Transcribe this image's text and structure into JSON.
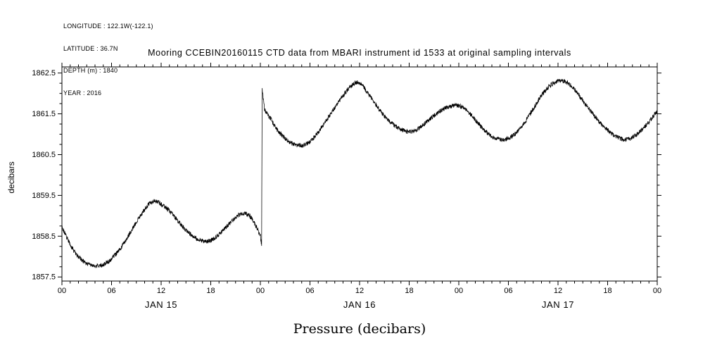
{
  "meta": {
    "longitude": "LONGITUDE : 122.1W(-122.1)",
    "latitude": "LATITUDE : 36.7N",
    "depth": "DEPTH (m) : 1840",
    "year": "YEAR : 2016"
  },
  "chart_data": {
    "type": "line",
    "title": "Mooring CCEBIN20160115 CTD data from MBARI instrument id 1533 at original sampling intervals",
    "ylabel": "decibars",
    "xlabel": "Pressure (decibars)",
    "background": "#ffffff",
    "line_color": "#000000",
    "frame_color": "#000000",
    "grid": false,
    "legend": false,
    "xlim_hours": [
      0,
      72
    ],
    "ylim": [
      1857.4,
      1862.65
    ],
    "y_ticks": [
      1857.5,
      1858.5,
      1859.5,
      1860.5,
      1861.5,
      1862.5
    ],
    "x_major_ticks_hours": [
      0,
      6,
      12,
      18,
      24,
      30,
      36,
      42,
      48,
      54,
      60,
      66,
      72
    ],
    "x_tick_labels": [
      "00",
      "06",
      "12",
      "18",
      "00",
      "06",
      "12",
      "18",
      "00",
      "06",
      "12",
      "18",
      "00"
    ],
    "x_minor_step_hours": 1,
    "y_minor_step": 0.25,
    "day_labels": [
      {
        "label": "JAN 15",
        "hour": 12
      },
      {
        "label": "JAN 16",
        "hour": 36
      },
      {
        "label": "JAN 17",
        "hour": 60
      }
    ],
    "noise_amplitude": 0.055,
    "series": [
      {
        "name": "pressure",
        "units": "decibars",
        "control_points": [
          [
            0,
            1858.72
          ],
          [
            0.5,
            1858.5
          ],
          [
            1,
            1858.3
          ],
          [
            1.5,
            1858.12
          ],
          [
            2,
            1858.0
          ],
          [
            2.5,
            1857.9
          ],
          [
            3,
            1857.83
          ],
          [
            4,
            1857.78
          ],
          [
            5,
            1857.8
          ],
          [
            6,
            1857.95
          ],
          [
            7,
            1858.18
          ],
          [
            8,
            1858.5
          ],
          [
            9,
            1858.85
          ],
          [
            10,
            1859.15
          ],
          [
            10.8,
            1859.33
          ],
          [
            11.5,
            1859.35
          ],
          [
            12,
            1859.28
          ],
          [
            13,
            1859.12
          ],
          [
            14,
            1858.88
          ],
          [
            15,
            1858.65
          ],
          [
            16,
            1858.48
          ],
          [
            17,
            1858.38
          ],
          [
            18,
            1858.4
          ],
          [
            19,
            1858.55
          ],
          [
            20,
            1858.75
          ],
          [
            21,
            1858.95
          ],
          [
            21.8,
            1859.05
          ],
          [
            22.5,
            1859.03
          ],
          [
            23,
            1858.92
          ],
          [
            23.6,
            1858.7
          ],
          [
            24.0,
            1858.5
          ],
          [
            24.15,
            1858.28
          ],
          [
            24.22,
            1862.1
          ],
          [
            24.5,
            1861.62
          ],
          [
            25,
            1861.45
          ],
          [
            26,
            1861.12
          ],
          [
            27,
            1860.9
          ],
          [
            28,
            1860.76
          ],
          [
            29,
            1860.72
          ],
          [
            30,
            1860.82
          ],
          [
            31,
            1861.05
          ],
          [
            32,
            1861.35
          ],
          [
            33,
            1861.65
          ],
          [
            34,
            1861.95
          ],
          [
            35,
            1862.18
          ],
          [
            35.6,
            1862.27
          ],
          [
            36.3,
            1862.2
          ],
          [
            37,
            1862.0
          ],
          [
            38,
            1861.72
          ],
          [
            39,
            1861.45
          ],
          [
            40,
            1861.25
          ],
          [
            41,
            1861.12
          ],
          [
            42,
            1861.06
          ],
          [
            43,
            1861.12
          ],
          [
            44,
            1861.28
          ],
          [
            45,
            1861.45
          ],
          [
            46,
            1861.6
          ],
          [
            47,
            1861.68
          ],
          [
            48,
            1861.7
          ],
          [
            49,
            1861.58
          ],
          [
            50,
            1861.35
          ],
          [
            51,
            1861.12
          ],
          [
            52,
            1860.95
          ],
          [
            53,
            1860.87
          ],
          [
            54,
            1860.9
          ],
          [
            55,
            1861.05
          ],
          [
            56,
            1861.3
          ],
          [
            57,
            1861.62
          ],
          [
            58,
            1861.95
          ],
          [
            59,
            1862.18
          ],
          [
            60,
            1862.3
          ],
          [
            61,
            1862.28
          ],
          [
            62,
            1862.1
          ],
          [
            63,
            1861.82
          ],
          [
            64,
            1861.55
          ],
          [
            65,
            1861.3
          ],
          [
            66,
            1861.1
          ],
          [
            67,
            1860.95
          ],
          [
            68,
            1860.87
          ],
          [
            69,
            1860.92
          ],
          [
            70,
            1861.08
          ],
          [
            71,
            1861.3
          ],
          [
            72,
            1861.55
          ]
        ]
      }
    ]
  }
}
